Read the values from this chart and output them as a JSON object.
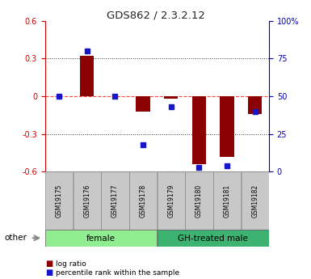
{
  "title": "GDS862 / 2.3.2.12",
  "samples": [
    "GSM19175",
    "GSM19176",
    "GSM19177",
    "GSM19178",
    "GSM19179",
    "GSM19180",
    "GSM19181",
    "GSM19182"
  ],
  "log_ratio": [
    0.0,
    0.32,
    0.0,
    -0.12,
    -0.02,
    -0.54,
    -0.48,
    -0.14
  ],
  "percentile_rank": [
    50,
    80,
    50,
    18,
    43,
    3,
    4,
    40
  ],
  "groups": [
    {
      "label": "female",
      "start": 0,
      "end": 3,
      "color": "#90EE90"
    },
    {
      "label": "GH-treated male",
      "start": 4,
      "end": 7,
      "color": "#3CB371"
    }
  ],
  "ylim": [
    -0.6,
    0.6
  ],
  "yticks_left": [
    -0.6,
    -0.3,
    0.0,
    0.3,
    0.6
  ],
  "ytick_labels_left": [
    "-0.6",
    "-0.3",
    "0",
    "0.3",
    "0.6"
  ],
  "right_yticks_pct": [
    0,
    25,
    50,
    75,
    100
  ],
  "bar_color": "#8B0000",
  "dot_color": "#1515CC",
  "zero_line_color": "#FF4444",
  "grid_color": "#333333",
  "left_axis_color": "#CC0000",
  "right_axis_color": "#0000BB",
  "sample_box_color": "#C8C8C8",
  "female_group_color": "#AAFFAA",
  "male_group_color": "#44CC44",
  "bar_width": 0.5
}
